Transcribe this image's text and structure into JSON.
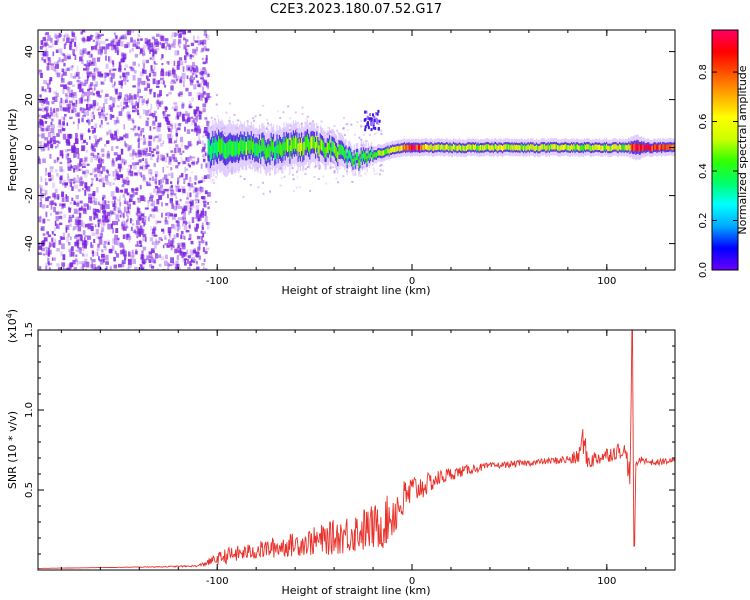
{
  "figure_title": "C2E3.2023.180.07.52.G17",
  "colors": {
    "background": "#ffffff",
    "axis": "#000000",
    "snr_line": "#e8312a",
    "scatter_purple": "#7a1fe0",
    "spectral_ridge": "#26d0a0",
    "ridge_peak": "#e01515"
  },
  "colormap": [
    "#6a00ff",
    "#0000ff",
    "#00aaff",
    "#00ffff",
    "#00ff66",
    "#33ff00",
    "#ccff00",
    "#ffff00",
    "#ffaa00",
    "#ff5500",
    "#ff0000",
    "#ff0066"
  ],
  "chart_data": [
    {
      "type": "heatmap",
      "title": "",
      "xlabel": "Height of straight line (km)",
      "ylabel": "Frequency (Hz)",
      "xlim": [
        -192,
        135
      ],
      "ylim": [
        -51,
        49
      ],
      "x_ticks": [
        -100,
        0,
        100
      ],
      "x_tick_labels": [
        "-100",
        "0",
        "100"
      ],
      "y_ticks": [
        -40,
        -20,
        0,
        20,
        40
      ],
      "y_tick_labels": [
        "-40",
        "-20",
        "0",
        "20",
        "40"
      ],
      "noise_region_x": [
        -192,
        -105
      ],
      "ridge": {
        "x": [
          -105,
          -95,
          -85,
          -75,
          -65,
          -55,
          -45,
          -38,
          -32,
          -28,
          -24,
          -20,
          -15,
          -10,
          -5,
          0,
          5,
          10,
          20,
          40,
          60,
          80,
          100,
          110,
          115,
          120,
          135
        ],
        "y": [
          -1,
          0,
          1,
          -1,
          0,
          1,
          0,
          -2,
          -4,
          -5,
          -4,
          -3,
          -2,
          -1,
          0,
          0,
          0,
          0,
          0,
          0,
          0,
          0,
          0,
          0,
          0,
          0,
          0
        ],
        "halfwidth_hz": [
          6,
          6,
          5,
          5,
          5,
          5,
          4,
          4,
          3,
          3,
          3,
          2,
          2,
          2,
          2,
          2,
          2,
          2,
          2,
          2,
          2,
          2,
          2,
          2,
          3,
          2,
          2
        ],
        "amplitude": [
          0.35,
          0.4,
          0.45,
          0.4,
          0.45,
          0.5,
          0.5,
          0.45,
          0.4,
          0.4,
          0.4,
          0.45,
          0.5,
          0.55,
          0.7,
          0.95,
          0.7,
          0.6,
          0.55,
          0.55,
          0.55,
          0.55,
          0.55,
          0.55,
          0.95,
          0.9,
          0.85
        ]
      },
      "colorbar": {
        "label": "Normalized spectral amplitude",
        "lim": [
          0,
          0.97
        ],
        "ticks": [
          0.0,
          0.2,
          0.4,
          0.6,
          0.8
        ],
        "tick_labels": [
          "0.0",
          "0.2",
          "0.4",
          "0.6",
          "0.8"
        ]
      }
    },
    {
      "type": "line",
      "title": "",
      "xlabel": "Height of straight line (km)",
      "ylabel": "SNR (10 * v/v)",
      "y_multiplier_label": "(x10",
      "y_multiplier_exponent": "4",
      "y_multiplier_close": ")",
      "xlim": [
        -192,
        135
      ],
      "ylim": [
        0,
        1.5
      ],
      "x_ticks": [
        -100,
        0,
        100
      ],
      "x_tick_labels": [
        "-100",
        "0",
        "100"
      ],
      "y_ticks": [
        0.5,
        1.0,
        1.5
      ],
      "y_tick_labels": [
        "0.5",
        "1.0",
        "1.5"
      ],
      "series": [
        {
          "x": [
            -192,
            -160,
            -130,
            -110,
            -102,
            -95,
            -85,
            -75,
            -65,
            -55,
            -45,
            -35,
            -25,
            -15,
            -10,
            -5,
            0,
            5,
            10,
            15,
            20,
            30,
            40,
            50,
            60,
            70,
            80,
            85,
            88,
            90,
            95,
            100,
            105,
            108,
            110,
            112,
            113,
            114,
            115,
            118,
            120,
            125,
            130,
            135
          ],
          "y": [
            0.01,
            0.015,
            0.02,
            0.025,
            0.06,
            0.09,
            0.11,
            0.13,
            0.15,
            0.17,
            0.19,
            0.22,
            0.25,
            0.28,
            0.35,
            0.42,
            0.5,
            0.52,
            0.55,
            0.58,
            0.6,
            0.63,
            0.65,
            0.66,
            0.67,
            0.68,
            0.69,
            0.7,
            0.82,
            0.68,
            0.7,
            0.72,
            0.74,
            0.76,
            0.7,
            0.6,
            1.5,
            0.15,
            0.66,
            0.7,
            0.68,
            0.67,
            0.68,
            0.68
          ],
          "noise": [
            0.0,
            0.0,
            0.003,
            0.005,
            0.03,
            0.05,
            0.05,
            0.06,
            0.07,
            0.08,
            0.1,
            0.12,
            0.14,
            0.15,
            0.16,
            0.14,
            0.1,
            0.08,
            0.06,
            0.05,
            0.04,
            0.03,
            0.02,
            0.02,
            0.02,
            0.02,
            0.03,
            0.05,
            0.1,
            0.06,
            0.05,
            0.05,
            0.05,
            0.06,
            0.08,
            0.08,
            0.0,
            0.0,
            0.03,
            0.02,
            0.02,
            0.02,
            0.02,
            0.02
          ]
        }
      ]
    }
  ]
}
